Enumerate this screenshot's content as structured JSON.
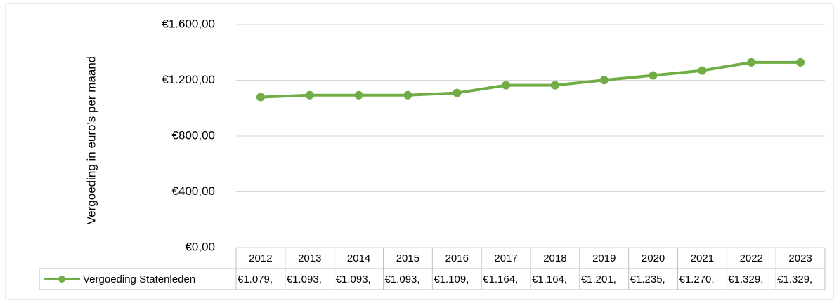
{
  "chart_data": {
    "type": "line",
    "y_label": "Vergoeding in euro's per maand",
    "categories": [
      "2012",
      "2013",
      "2014",
      "2015",
      "2016",
      "2017",
      "2018",
      "2019",
      "2020",
      "2021",
      "2022",
      "2023"
    ],
    "series": [
      {
        "name": "Vergoeding Statenleden",
        "color": "#70ad47",
        "values": [
          1079,
          1093,
          1093,
          1093,
          1109,
          1164,
          1164,
          1201,
          1235,
          1270,
          1329,
          1329
        ],
        "value_labels": [
          "€1.079,",
          "€1.093,",
          "€1.093,",
          "€1.093,",
          "€1.109,",
          "€1.164,",
          "€1.164,",
          "€1.201,",
          "€1.235,",
          "€1.270,",
          "€1.329,",
          "€1.329,"
        ]
      }
    ],
    "ylim": [
      0,
      1600
    ],
    "yticks": [
      {
        "value": 0,
        "label": "€0,00"
      },
      {
        "value": 400,
        "label": "€400,00"
      },
      {
        "value": 800,
        "label": "€800,00"
      },
      {
        "value": 1200,
        "label": "€1.200,00"
      },
      {
        "value": 1600,
        "label": "€1.600,00"
      }
    ],
    "grid": true
  }
}
